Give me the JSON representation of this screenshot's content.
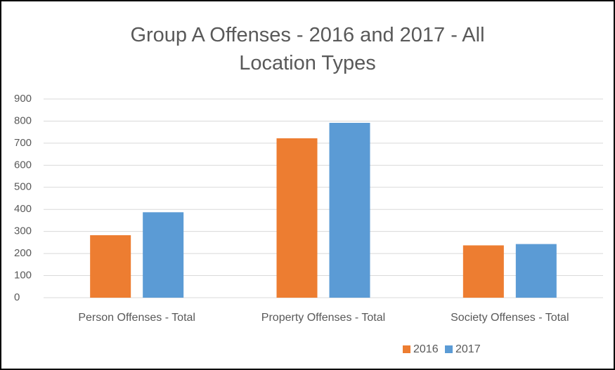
{
  "chart_data": {
    "type": "bar",
    "title": "Group A Offenses - 2016 and 2017 - All Location Types",
    "categories": [
      "Person Offenses - Total",
      "Property Offenses - Total",
      "Society Offenses - Total"
    ],
    "series": [
      {
        "name": "2016",
        "color": "#ed7d31",
        "values": [
          283,
          722,
          237
        ]
      },
      {
        "name": "2017",
        "color": "#5b9bd5",
        "values": [
          387,
          792,
          243
        ]
      }
    ],
    "ylim": [
      0,
      900
    ],
    "yticks": [
      0,
      100,
      200,
      300,
      400,
      500,
      600,
      700,
      800,
      900
    ],
    "grid": true,
    "legend": "bottom"
  }
}
